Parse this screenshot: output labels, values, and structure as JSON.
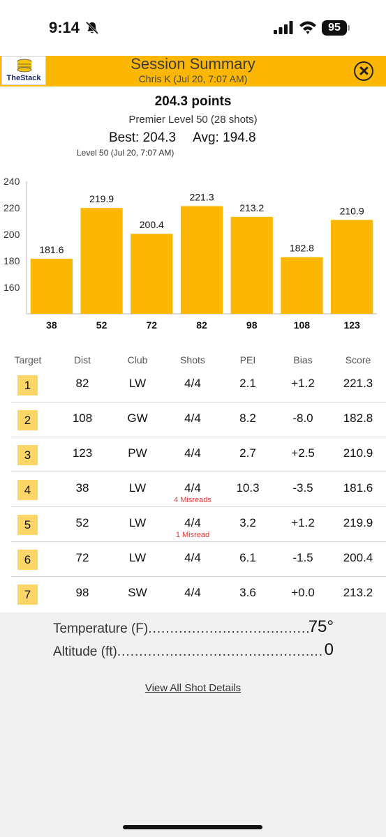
{
  "status_bar": {
    "time": "9:14",
    "battery": "95"
  },
  "header": {
    "logo_text": "TheStack",
    "title": "Session Summary",
    "subtitle": "Chris K (Jul 20, 7:07 AM)"
  },
  "summary": {
    "points": "204.3 points",
    "level": "Premier Level 50 (28 shots)",
    "best": "Best: 204.3",
    "avg": "Avg: 194.8",
    "level_note": "Level 50 (Jul 20, 7:07 AM)"
  },
  "chart_data": {
    "type": "bar",
    "categories": [
      "38",
      "52",
      "72",
      "82",
      "98",
      "108",
      "123"
    ],
    "values": [
      181.6,
      219.9,
      200.4,
      221.3,
      213.2,
      182.8,
      210.9
    ],
    "y_ticks": [
      "160",
      "180",
      "200",
      "220",
      "240"
    ],
    "ylim": [
      140,
      240
    ],
    "bar_color": "#fbb703",
    "title": "",
    "xlabel": "",
    "ylabel": ""
  },
  "table": {
    "headers": [
      "Target",
      "Dist",
      "Club",
      "Shots",
      "PEI",
      "Bias",
      "Score"
    ],
    "rows": [
      {
        "target": "1",
        "dist": "82",
        "club": "LW",
        "shots": "4/4",
        "pei": "2.1",
        "bias": "+1.2",
        "score": "221.3",
        "note": ""
      },
      {
        "target": "2",
        "dist": "108",
        "club": "GW",
        "shots": "4/4",
        "pei": "8.2",
        "bias": "-8.0",
        "score": "182.8",
        "note": ""
      },
      {
        "target": "3",
        "dist": "123",
        "club": "PW",
        "shots": "4/4",
        "pei": "2.7",
        "bias": "+2.5",
        "score": "210.9",
        "note": ""
      },
      {
        "target": "4",
        "dist": "38",
        "club": "LW",
        "shots": "4/4",
        "pei": "10.3",
        "bias": "-3.5",
        "score": "181.6",
        "note": "4 Misreads"
      },
      {
        "target": "5",
        "dist": "52",
        "club": "LW",
        "shots": "4/4",
        "pei": "3.2",
        "bias": "+1.2",
        "score": "219.9",
        "note": "1 Misread"
      },
      {
        "target": "6",
        "dist": "72",
        "club": "LW",
        "shots": "4/4",
        "pei": "6.1",
        "bias": "-1.5",
        "score": "200.4",
        "note": ""
      },
      {
        "target": "7",
        "dist": "98",
        "club": "SW",
        "shots": "4/4",
        "pei": "3.6",
        "bias": "+0.0",
        "score": "213.2",
        "note": ""
      }
    ]
  },
  "environment": {
    "temperature_label": "Temperature (F)",
    "temperature_value": "75°",
    "altitude_label": "Altitude (ft)",
    "altitude_value": "0"
  },
  "links": {
    "view_details": "View All Shot Details"
  },
  "colors": {
    "accent": "#fbb703",
    "badge": "#fcd767",
    "misread": "#e53935"
  }
}
